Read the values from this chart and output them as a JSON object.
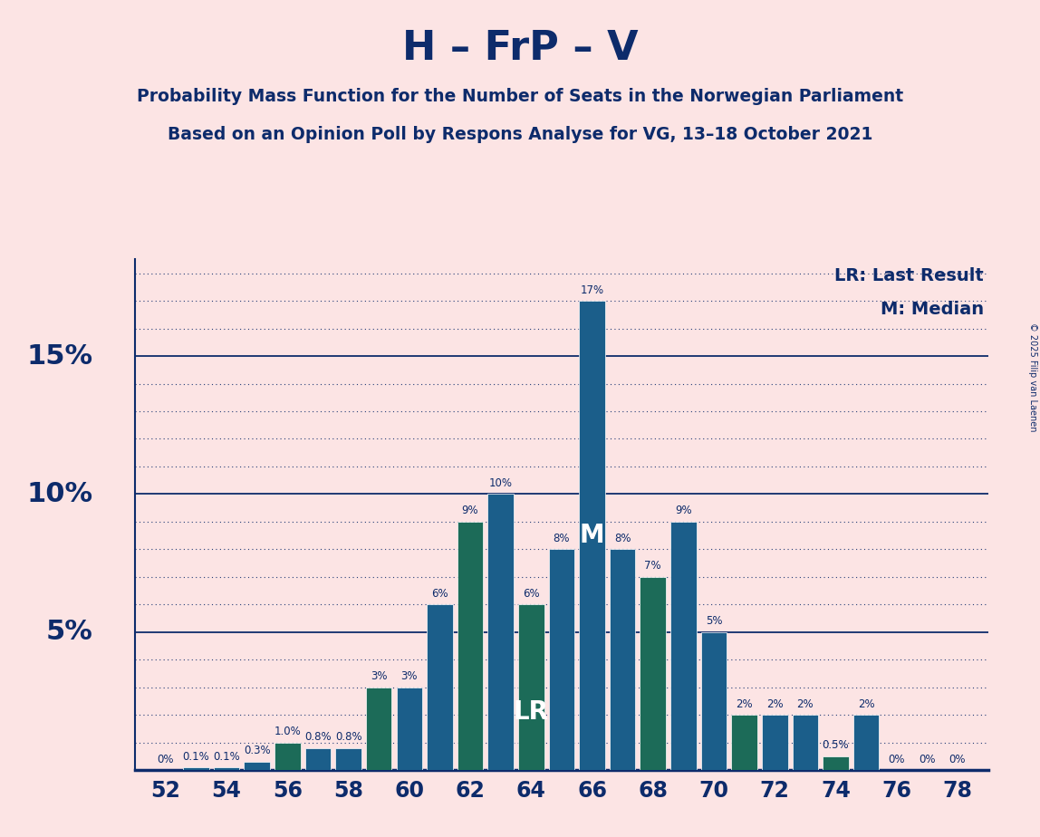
{
  "title": "H – FrP – V",
  "subtitle1": "Probability Mass Function for the Number of Seats in the Norwegian Parliament",
  "subtitle2": "Based on an Opinion Poll by Respons Analyse for VG, 13–18 October 2021",
  "legend_lr": "LR: Last Result",
  "legend_m": "M: Median",
  "copyright": "© 2025 Filip van Laenen",
  "seats": [
    52,
    53,
    54,
    55,
    56,
    57,
    58,
    59,
    60,
    61,
    62,
    63,
    64,
    65,
    66,
    67,
    68,
    69,
    70,
    71,
    72,
    73,
    74,
    75,
    76,
    77,
    78
  ],
  "values": [
    0.0,
    0.1,
    0.1,
    0.3,
    1.0,
    0.8,
    0.8,
    3.0,
    3.0,
    6.0,
    9.0,
    10.0,
    6.0,
    8.0,
    17.0,
    8.0,
    7.0,
    9.0,
    5.0,
    2.0,
    2.0,
    2.0,
    0.5,
    2.0,
    0.0,
    0.0,
    0.0
  ],
  "labels": [
    "0%",
    "0.1%",
    "0.1%",
    "0.3%",
    "1.0%",
    "0.8%",
    "0.8%",
    "3%",
    "3%",
    "6%",
    "9%",
    "10%",
    "6%",
    "8%",
    "17%",
    "8%",
    "7%",
    "9%",
    "5%",
    "2%",
    "2%",
    "2%",
    "0.5%",
    "2%",
    "0%",
    "0%",
    "0%"
  ],
  "colors": [
    "#1b5e8a",
    "#1b5e8a",
    "#1b5e8a",
    "#1b5e8a",
    "#1c6b58",
    "#1b5e8a",
    "#1b5e8a",
    "#1c6b58",
    "#1b5e8a",
    "#1b5e8a",
    "#1c6b58",
    "#1b5e8a",
    "#1c6b58",
    "#1b5e8a",
    "#1b5e8a",
    "#1b5e8a",
    "#1c6b58",
    "#1b5e8a",
    "#1b5e8a",
    "#1c6b58",
    "#1b5e8a",
    "#1b5e8a",
    "#1c6b58",
    "#1b5e8a",
    "#1b5e8a",
    "#1b5e8a",
    "#1b5e8a"
  ],
  "lr_seat": 64,
  "median_seat": 66,
  "background_color": "#fce4e4",
  "bar_edge_color": "#ffffff",
  "text_color": "#0d2b6b",
  "ylim": [
    0,
    18.5
  ],
  "xlim": [
    51,
    79
  ]
}
